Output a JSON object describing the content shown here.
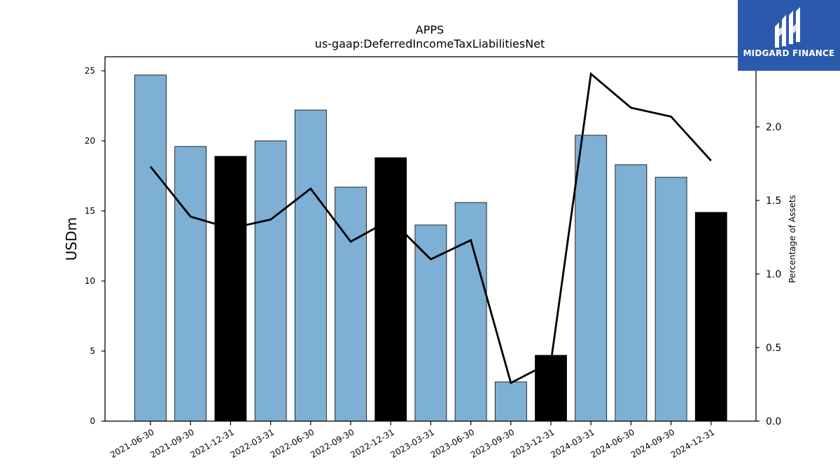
{
  "brand": {
    "name": "MIDGARD FINANCE",
    "background": "#2b5aad",
    "icon": "midgard-logo-icon"
  },
  "chart_data": {
    "type": "bar",
    "title": "APPS",
    "subtitle": "us-gaap:DeferredIncomeTaxLiabilitiesNet",
    "xlabel": "",
    "ylabel": "USDm",
    "ylabel_right": "Percentage of Assets",
    "ylim": [
      0,
      26
    ],
    "ylim_right": [
      0,
      2.4765
    ],
    "yticks": [
      0,
      5,
      10,
      15,
      20,
      25
    ],
    "yticks_right": [
      "0.0",
      "0.5",
      "1.0",
      "1.5",
      "2.0"
    ],
    "grid": false,
    "categories": [
      "2021-06-30",
      "2021-09-30",
      "2021-12-31",
      "2022-03-31",
      "2022-06-30",
      "2022-09-30",
      "2022-12-31",
      "2023-03-31",
      "2023-06-30",
      "2023-09-30",
      "2023-12-31",
      "2024-03-31",
      "2024-06-30",
      "2024-09-30",
      "2024-12-31"
    ],
    "series": [
      {
        "type": "bar",
        "axis": "left",
        "values": [
          24.7,
          19.6,
          18.9,
          20.0,
          22.2,
          16.7,
          18.8,
          14.0,
          15.6,
          2.8,
          4.7,
          20.4,
          18.3,
          17.4,
          14.9
        ],
        "colors": [
          "#7eafd4",
          "#7eafd4",
          "#000000",
          "#7eafd4",
          "#7eafd4",
          "#7eafd4",
          "#000000",
          "#7eafd4",
          "#7eafd4",
          "#7eafd4",
          "#000000",
          "#7eafd4",
          "#7eafd4",
          "#7eafd4",
          "#000000"
        ]
      },
      {
        "type": "line",
        "axis": "right",
        "color": "#000000",
        "values": [
          1.73,
          1.39,
          1.31,
          1.37,
          1.58,
          1.22,
          1.37,
          1.1,
          1.23,
          0.26,
          0.4,
          2.36,
          2.13,
          2.07,
          1.77
        ]
      }
    ]
  }
}
